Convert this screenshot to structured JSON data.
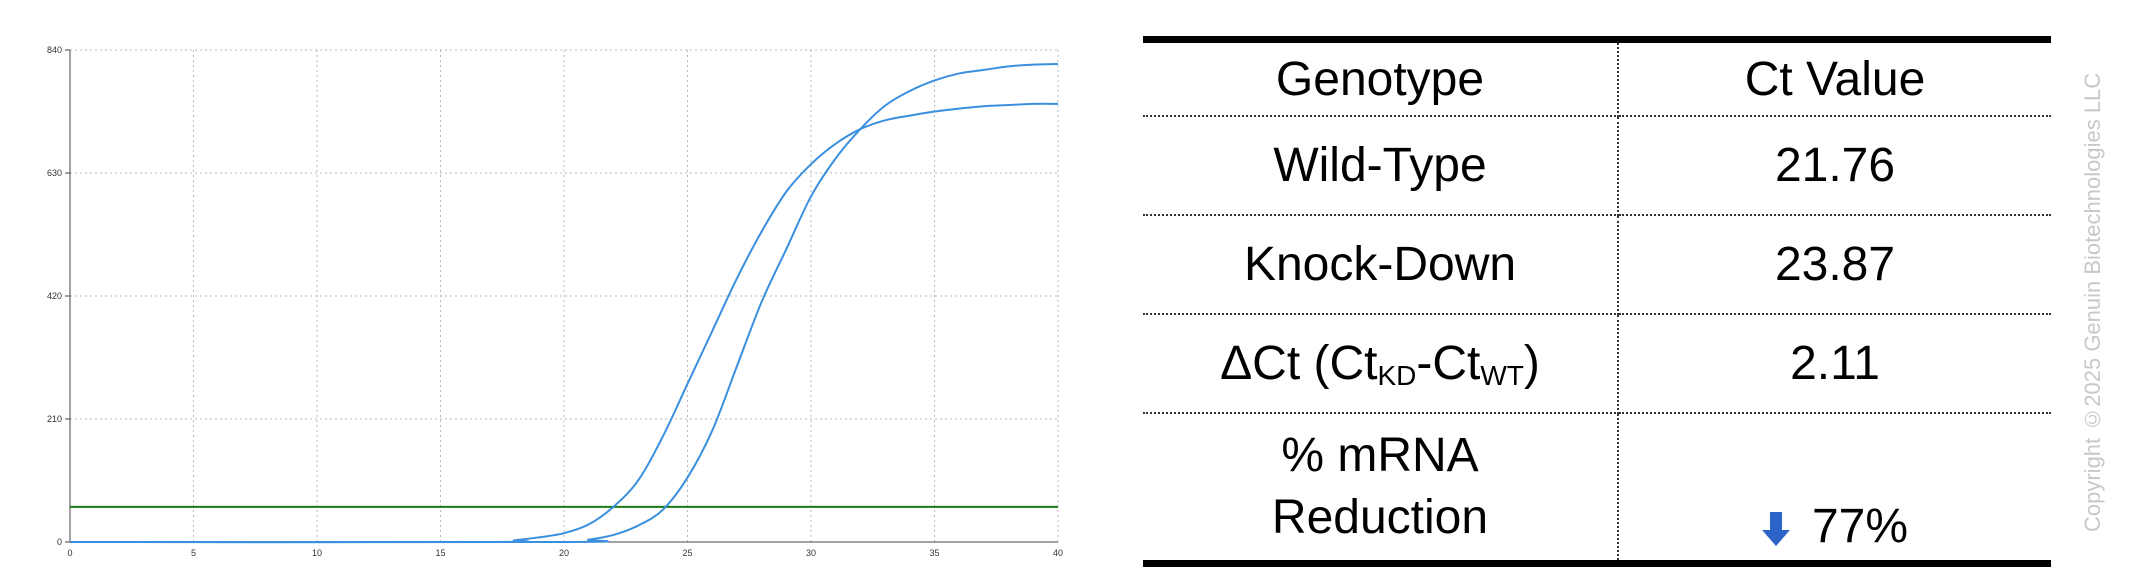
{
  "chart_data": {
    "type": "line",
    "title": "",
    "xlabel": "",
    "ylabel": "",
    "xlim": [
      0,
      40
    ],
    "ylim": [
      0,
      840
    ],
    "xticks": [
      0,
      5,
      10,
      15,
      20,
      25,
      30,
      35,
      40
    ],
    "yticks": [
      0,
      210,
      420,
      630,
      840
    ],
    "grid": true,
    "threshold": {
      "value": 60,
      "color": "#1a7a1a"
    },
    "series": [
      {
        "color": "#3a8fdf",
        "x": [
          0,
          17,
          18,
          19,
          20,
          21,
          22,
          23,
          24,
          25,
          26,
          27,
          28,
          29,
          30,
          31,
          32,
          33,
          34,
          35,
          36,
          37,
          38,
          39,
          40
        ],
        "values": [
          0,
          0,
          3,
          8,
          15,
          30,
          60,
          105,
          180,
          270,
          360,
          450,
          530,
          598,
          645,
          680,
          705,
          720,
          728,
          735,
          740,
          744,
          746,
          748,
          748
        ]
      },
      {
        "color": "#3a8fdf",
        "x": [
          0,
          20,
          21,
          22,
          23,
          24,
          25,
          26,
          27,
          28,
          29,
          30,
          31,
          32,
          33,
          34,
          35,
          36,
          37,
          38,
          39,
          40
        ],
        "values": [
          0,
          0,
          4,
          12,
          28,
          55,
          110,
          190,
          300,
          410,
          500,
          590,
          655,
          705,
          745,
          770,
          788,
          800,
          806,
          812,
          815,
          816
        ]
      }
    ]
  },
  "table": {
    "headers": {
      "genotype": "Genotype",
      "ct": "Ct Value"
    },
    "rows": {
      "wt": {
        "label": "Wild-Type",
        "value": "21.76"
      },
      "kd": {
        "label": "Knock-Down",
        "value": "23.87"
      },
      "dct": {
        "label_prefix": "ΔCt (Ct",
        "sub1": "KD",
        "mid": "-Ct",
        "sub2": "WT",
        "suffix": ")",
        "value": "2.11"
      },
      "reduction": {
        "label_line1": "% mRNA",
        "label_line2": "Reduction",
        "value": "77%",
        "icon": "down-arrow-icon",
        "icon_color": "#2e63c9"
      }
    }
  },
  "copyright": "Copyright ©2025 Genuin Biotechnologies LLC"
}
